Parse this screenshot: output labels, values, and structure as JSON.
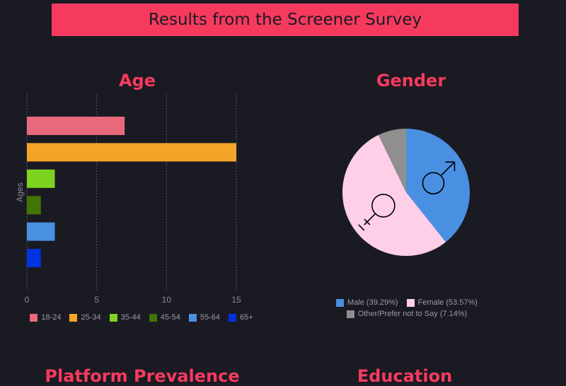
{
  "header": {
    "title": "Results from the Screener Survey"
  },
  "sections": {
    "age_title": "Age",
    "gender_title": "Gender",
    "platform_title": "Platform Prevalence",
    "education_title": "Education"
  },
  "chart_data": [
    {
      "type": "bar",
      "orientation": "horizontal",
      "title": "Age",
      "ylabel": "Ages",
      "xlabel": "",
      "xlim": [
        0,
        15
      ],
      "xticks": [
        "0",
        "5",
        "10",
        "15"
      ],
      "grid": true,
      "legend_position": "bottom",
      "categories": [
        "18-24",
        "25-34",
        "35-44",
        "45-54",
        "55-64",
        "65+"
      ],
      "values": [
        7,
        15,
        2,
        1,
        2,
        1
      ],
      "colors": [
        "#e8697c",
        "#f4a429",
        "#7ed321",
        "#417505",
        "#4a90e2",
        "#0033e0"
      ]
    },
    {
      "type": "pie",
      "title": "Gender",
      "legend_position": "bottom",
      "slices": [
        {
          "label": "Male (39.29%)",
          "value": 39.29,
          "color": "#4a90e2",
          "icon": "male-symbol-icon"
        },
        {
          "label": "Female (53.57%)",
          "value": 53.57,
          "color": "#ffcfe8",
          "icon": "female-symbol-icon"
        },
        {
          "label": "Other/Prefer not to Say (7.14%)",
          "value": 7.14,
          "color": "#8f8f8f"
        }
      ]
    }
  ]
}
